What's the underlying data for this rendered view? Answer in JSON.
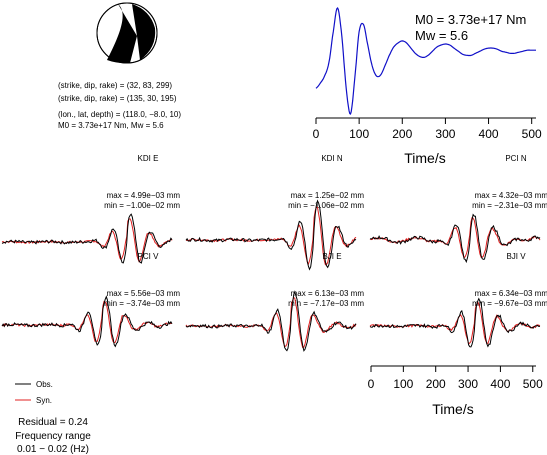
{
  "mechanism": {
    "lines": [
      "(strike, dip, rake) = (32, 83, 299)",
      "(strike, dip, rake) = (135, 30, 195)",
      "(lon., lat, depth) = (118.0, −8.0, 10)",
      "M0 = 3.73e+17 Nm, Mw = 5.6"
    ]
  },
  "stf": {
    "m0_label": "M0 = 3.73e+17 Nm",
    "mw_label": "Mw = 5.6",
    "xlabel": "Time/s",
    "xticks": [
      "0",
      "100",
      "200",
      "300",
      "400",
      "500"
    ],
    "color": "#1010c8"
  },
  "waveforms": {
    "xlabel": "Time/s",
    "xticks": [
      "0",
      "100",
      "200",
      "300",
      "400",
      "500"
    ],
    "panels": [
      {
        "name": "KDI E",
        "max": "max = 4.99e−03 mm",
        "min": "min = −1.00e−02 mm"
      },
      {
        "name": "KDI N",
        "max": "max = 1.25e−02 mm",
        "min": "min = −1.06e−02 mm"
      },
      {
        "name": "PCI N",
        "max": "max = 4.32e−03 mm",
        "min": "min = −2.31e−03 mm"
      },
      {
        "name": "PCI V",
        "max": "max = 5.56e−03 mm",
        "min": "min = −3.74e−03 mm"
      },
      {
        "name": "BJI E",
        "max": "max = 6.13e−03 mm",
        "min": "min = −7.17e−03 mm"
      },
      {
        "name": "BJI V",
        "max": "max = 6.34e−03 mm",
        "min": "min = −9.67e−03 mm"
      }
    ]
  },
  "legend": {
    "obs": "Obs.",
    "syn": "Syn.",
    "obs_color": "#000000",
    "syn_color": "#e02020"
  },
  "info": {
    "residual": "Residual = 0.24",
    "freq_label": "Frequency range",
    "freq_value": "0.01 − 0.02 (Hz)"
  },
  "chart_data": [
    {
      "type": "line",
      "x": [
        0,
        10,
        20,
        30,
        40,
        50,
        60,
        70,
        80,
        90,
        100,
        110,
        120,
        130,
        140,
        150,
        160,
        170,
        180,
        190,
        200,
        210,
        220,
        230,
        240,
        250,
        260,
        270,
        280,
        290,
        300,
        310,
        320,
        330,
        340,
        350,
        360,
        370,
        380,
        390,
        400,
        410,
        420,
        430,
        440,
        450,
        460,
        470,
        480,
        490,
        500,
        510
      ],
      "series": [
        {
          "values": [
            0.2,
            0.25,
            0.32,
            0.45,
            0.75,
            0.98,
            0.7,
            0.2,
            -0.05,
            0.3,
            0.75,
            0.82,
            0.62,
            0.42,
            0.32,
            0.33,
            0.42,
            0.52,
            0.6,
            0.64,
            0.66,
            0.64,
            0.59,
            0.54,
            0.51,
            0.5,
            0.52,
            0.56,
            0.6,
            0.62,
            0.63,
            0.62,
            0.59,
            0.56,
            0.53,
            0.52,
            0.52,
            0.54,
            0.56,
            0.58,
            0.59,
            0.59,
            0.58,
            0.56,
            0.55,
            0.54,
            0.54,
            0.55,
            0.56,
            0.57,
            0.57,
            0.57
          ]
        }
      ],
      "xlabel": "Time/s",
      "xlim": [
        0,
        510
      ]
    }
  ]
}
